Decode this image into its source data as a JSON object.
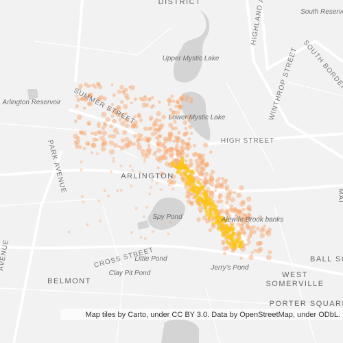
{
  "map": {
    "labels": [
      "DISTRICT",
      "South Reservoir",
      "Upper Mystic Lake",
      "Arlington Reservoir",
      "SUMMER STREET",
      "Lower Mystic Lake",
      "HIGH STREET",
      "ARLINGTON",
      "PARK AVENUE",
      "Spy Pond",
      "Alewife Brook banks",
      "Little Pond",
      "CROSS STREET",
      "BALL SQ",
      "WEST",
      "SOMERVILLE",
      "BELMONT",
      "Clay Pit Pond",
      "Jerry's Pond",
      "PORTER SQUARE",
      "WINTHROP STREET",
      "SOUTH BORDER",
      "HIGHLAND AVENUE",
      "AVENUE",
      "MAI"
    ],
    "attribution": "Map tiles by Carto, under CC BY 3.0. Data by OpenStreetMap, under ODbL."
  }
}
